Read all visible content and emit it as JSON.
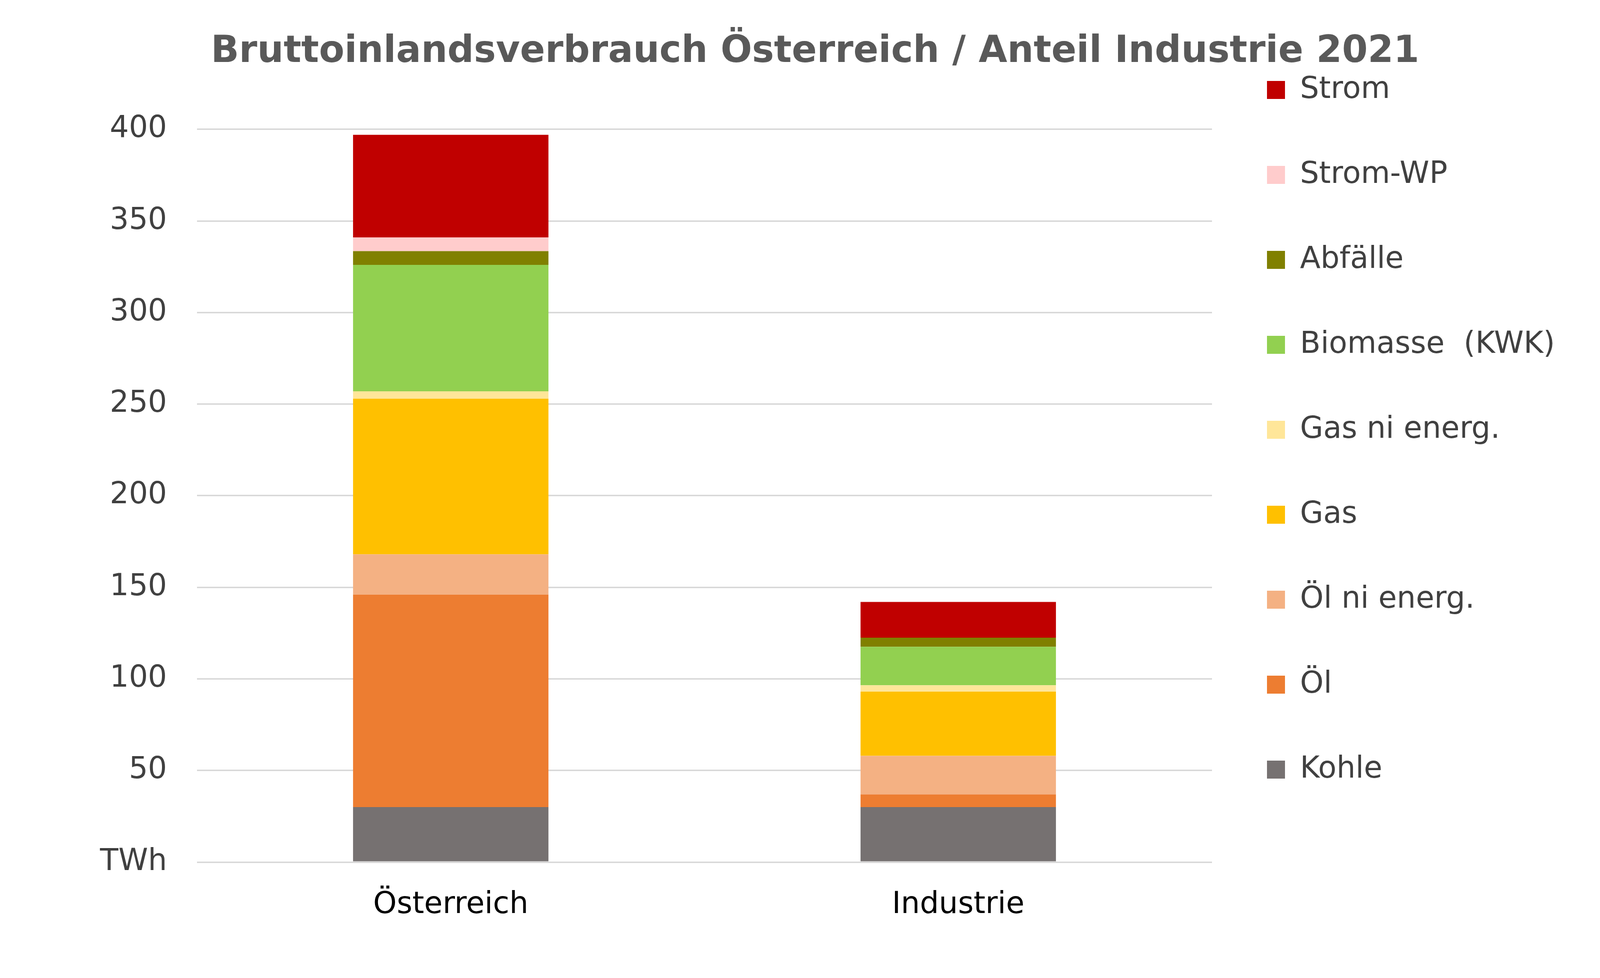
{
  "chart_data": {
    "type": "bar",
    "title": "Bruttoinlandsverbrauch Österreich / Anteil Industrie 2021",
    "categories": [
      "Österreich",
      "Industrie"
    ],
    "series": [
      {
        "name": "Kohle",
        "color": "#767171",
        "values": [
          30,
          30
        ]
      },
      {
        "name": "Öl",
        "color": "#ed7d31",
        "values": [
          116,
          7
        ]
      },
      {
        "name": "Öl ni energ.",
        "color": "#f4b183",
        "values": [
          22,
          21
        ]
      },
      {
        "name": "Gas",
        "color": "#ffc000",
        "values": [
          85,
          35
        ]
      },
      {
        "name": "Gas ni energ.",
        "color": "#ffe699",
        "values": [
          4,
          3.5
        ]
      },
      {
        "name": "Biomasse  (KWK)",
        "color": "#92d050",
        "values": [
          69,
          21
        ]
      },
      {
        "name": "Abfälle",
        "color": "#808000",
        "values": [
          7.5,
          5
        ]
      },
      {
        "name": "Strom-WP",
        "color": "#ffcccc",
        "values": [
          7.5,
          0
        ]
      },
      {
        "name": "Strom",
        "color": "#c00000",
        "values": [
          56,
          19.5
        ]
      }
    ],
    "ylim": [
      0,
      400
    ],
    "yticks": [
      {
        "value": 0,
        "label": "TWh"
      },
      50,
      100,
      150,
      200,
      250,
      300,
      350,
      400
    ],
    "stacked": true,
    "grid": true,
    "legend": "right"
  }
}
